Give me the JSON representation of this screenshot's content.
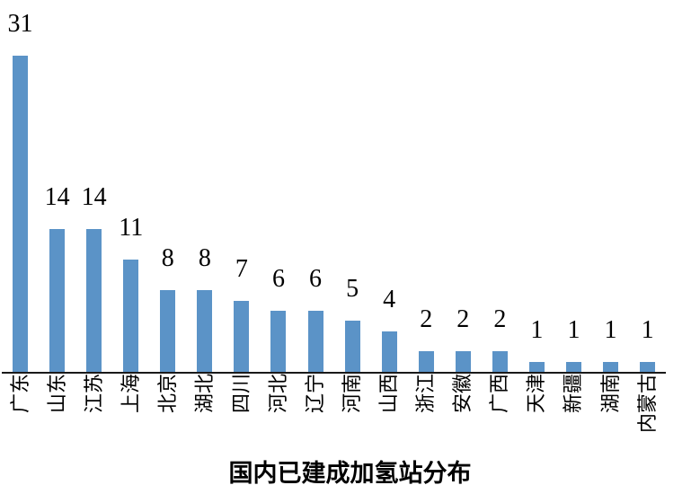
{
  "chart_data": {
    "type": "bar",
    "title": "国内已建成加氢站分布",
    "categories": [
      "广东",
      "山东",
      "江苏",
      "上海",
      "北京",
      "湖北",
      "四川",
      "河北",
      "辽宁",
      "河南",
      "山西",
      "浙江",
      "安徽",
      "广西",
      "天津",
      "新疆",
      "湖南",
      "内蒙古"
    ],
    "values": [
      31,
      14,
      14,
      11,
      8,
      8,
      7,
      6,
      6,
      5,
      4,
      2,
      2,
      2,
      1,
      1,
      1,
      1
    ],
    "xlabel": "",
    "ylabel": "",
    "ylim": [
      0,
      31
    ],
    "bar_color": "#5B93C7",
    "axis_color": "#1a1a1a",
    "data_labels": true,
    "grid": false,
    "legend": false,
    "label_rotation": -90
  }
}
